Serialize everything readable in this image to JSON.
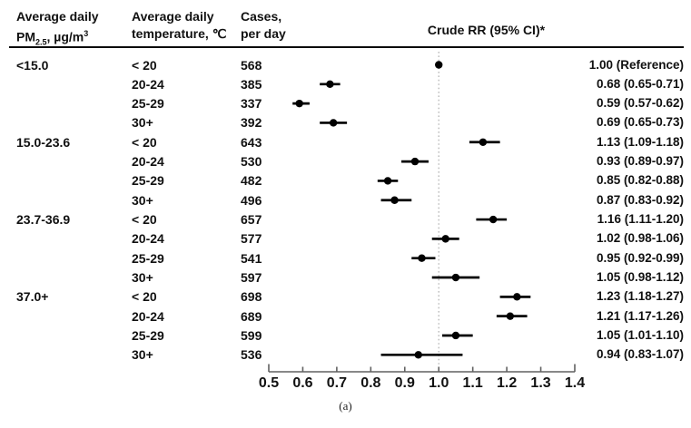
{
  "page": {
    "background": "#ffffff",
    "footer_label": "(a)"
  },
  "table": {
    "headers": {
      "col1_line1": "Average daily",
      "col1_line2": {
        "base": "PM",
        "sub": "2.5",
        "mid": ", µg/m",
        "sup": "3"
      },
      "col2_line1": "Average daily",
      "col2_line2": "temperature, ℃",
      "col3_line1": "Cases,",
      "col3_line2": "per day",
      "plot_header": "Crude RR (95% CI)*"
    }
  },
  "colors": {
    "text": "#111111",
    "marker": "#000000",
    "ci_line": "#000000",
    "axis": "#606060",
    "reference_line": "#b5b5b5",
    "header_rule": "#0a0a0a"
  },
  "chart_data": {
    "type": "forest",
    "title": "Crude RR (95% CI)*",
    "xlabel": "",
    "caption": "(a)",
    "x_axis": {
      "min": 0.5,
      "max": 1.4,
      "ticks": [
        0.5,
        0.6,
        0.7,
        0.8,
        0.9,
        1.0,
        1.1,
        1.2,
        1.3,
        1.4
      ],
      "reference_line": 1.0,
      "reference_line_style": "dotted"
    },
    "rows": [
      {
        "pm_group": "<15.0",
        "temperature": "< 20",
        "cases_per_day": "568",
        "rr": 1.0,
        "ci_low": null,
        "ci_high": null,
        "rr_label": "1.00 (Reference)"
      },
      {
        "pm_group": "",
        "temperature": "20-24",
        "cases_per_day": "385",
        "rr": 0.68,
        "ci_low": 0.65,
        "ci_high": 0.71,
        "rr_label": "0.68 (0.65-0.71)"
      },
      {
        "pm_group": "",
        "temperature": "25-29",
        "cases_per_day": "337",
        "rr": 0.59,
        "ci_low": 0.57,
        "ci_high": 0.62,
        "rr_label": "0.59 (0.57-0.62)"
      },
      {
        "pm_group": "",
        "temperature": "30+",
        "cases_per_day": "392",
        "rr": 0.69,
        "ci_low": 0.65,
        "ci_high": 0.73,
        "rr_label": "0.69 (0.65-0.73)"
      },
      {
        "pm_group": "15.0-23.6",
        "temperature": "< 20",
        "cases_per_day": "643",
        "rr": 1.13,
        "ci_low": 1.09,
        "ci_high": 1.18,
        "rr_label": "1.13 (1.09-1.18)"
      },
      {
        "pm_group": "",
        "temperature": "20-24",
        "cases_per_day": "530",
        "rr": 0.93,
        "ci_low": 0.89,
        "ci_high": 0.97,
        "rr_label": "0.93 (0.89-0.97)"
      },
      {
        "pm_group": "",
        "temperature": "25-29",
        "cases_per_day": "482",
        "rr": 0.85,
        "ci_low": 0.82,
        "ci_high": 0.88,
        "rr_label": "0.85 (0.82-0.88)"
      },
      {
        "pm_group": "",
        "temperature": "30+",
        "cases_per_day": "496",
        "rr": 0.87,
        "ci_low": 0.83,
        "ci_high": 0.92,
        "rr_label": "0.87 (0.83-0.92)"
      },
      {
        "pm_group": "23.7-36.9",
        "temperature": "< 20",
        "cases_per_day": "657",
        "rr": 1.16,
        "ci_low": 1.11,
        "ci_high": 1.2,
        "rr_label": "1.16 (1.11-1.20)"
      },
      {
        "pm_group": "",
        "temperature": "20-24",
        "cases_per_day": "577",
        "rr": 1.02,
        "ci_low": 0.98,
        "ci_high": 1.06,
        "rr_label": "1.02 (0.98-1.06)"
      },
      {
        "pm_group": "",
        "temperature": "25-29",
        "cases_per_day": "541",
        "rr": 0.95,
        "ci_low": 0.92,
        "ci_high": 0.99,
        "rr_label": "0.95 (0.92-0.99)"
      },
      {
        "pm_group": "",
        "temperature": "30+",
        "cases_per_day": "597",
        "rr": 1.05,
        "ci_low": 0.98,
        "ci_high": 1.12,
        "rr_label": "1.05 (0.98-1.12)"
      },
      {
        "pm_group": "37.0+",
        "temperature": "< 20",
        "cases_per_day": "698",
        "rr": 1.23,
        "ci_low": 1.18,
        "ci_high": 1.27,
        "rr_label": "1.23 (1.18-1.27)"
      },
      {
        "pm_group": "",
        "temperature": "20-24",
        "cases_per_day": "689",
        "rr": 1.21,
        "ci_low": 1.17,
        "ci_high": 1.26,
        "rr_label": "1.21 (1.17-1.26)"
      },
      {
        "pm_group": "",
        "temperature": "25-29",
        "cases_per_day": "599",
        "rr": 1.05,
        "ci_low": 1.01,
        "ci_high": 1.1,
        "rr_label": "1.05 (1.01-1.10)"
      },
      {
        "pm_group": "",
        "temperature": "30+",
        "cases_per_day": "536",
        "rr": 0.94,
        "ci_low": 0.83,
        "ci_high": 1.07,
        "rr_label": "0.94 (0.83-1.07)"
      }
    ]
  }
}
